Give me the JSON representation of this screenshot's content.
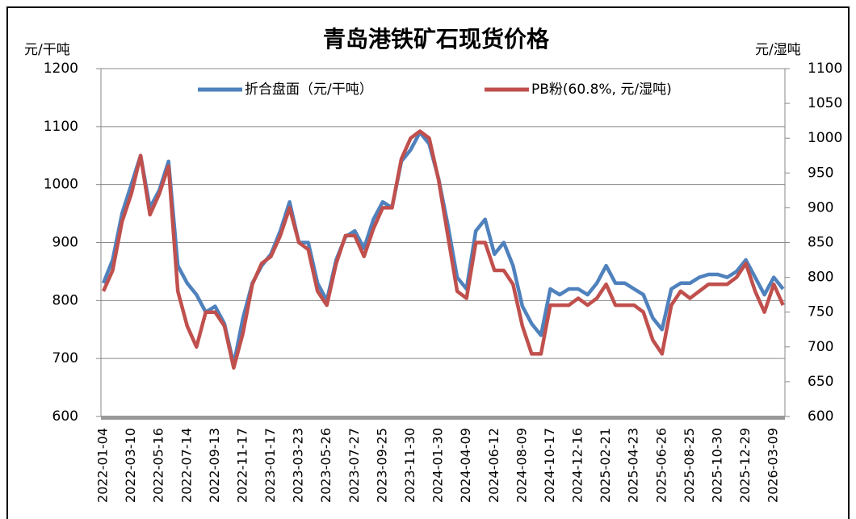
{
  "chart_data": {
    "type": "line",
    "title": "青岛港铁矿石现货价格",
    "y_label": "元/干吨",
    "y2_label": "元/湿吨",
    "categories": [
      "2022-01-04",
      null,
      null,
      "2022-03-10",
      null,
      null,
      "2022-05-16",
      null,
      null,
      "2022-07-14",
      null,
      null,
      "2022-09-13",
      null,
      null,
      "2022-11-17",
      null,
      null,
      "2023-01-17",
      null,
      null,
      "2023-03-23",
      null,
      null,
      "2023-05-26",
      null,
      null,
      "2023-07-27",
      null,
      null,
      "2023-09-25",
      null,
      null,
      "2023-11-30",
      null,
      null,
      "2024-01-30",
      null,
      null,
      "2024-04-09",
      null,
      null,
      "2024-06-12",
      null,
      null,
      "2024-08-09",
      null,
      null,
      "2024-10-17",
      null,
      null,
      "2024-12-16",
      null,
      null,
      "2025-02-21",
      null,
      null,
      "2025-04-23",
      null,
      null,
      "2025-06-26",
      null,
      null,
      "2025-08-25",
      null,
      null,
      "2025-10-30",
      null,
      null,
      "2025-12-29",
      null,
      null,
      "2026-03-09",
      null
    ],
    "series": [
      {
        "name": "折合盘面（元/干吨）",
        "color": "#4f81bd",
        "values": [
          830,
          870,
          950,
          1000,
          1050,
          960,
          990,
          1040,
          860,
          830,
          810,
          780,
          790,
          760,
          690,
          770,
          830,
          860,
          880,
          920,
          970,
          900,
          900,
          830,
          800,
          870,
          910,
          920,
          890,
          940,
          970,
          960,
          1040,
          1060,
          1090,
          1070,
          1010,
          930,
          840,
          820,
          920,
          940,
          880,
          900,
          860,
          790,
          760,
          740,
          820,
          810,
          820,
          820,
          810,
          830,
          860,
          830,
          830,
          820,
          810,
          770,
          750,
          820,
          830,
          830,
          840,
          845,
          845,
          840,
          850,
          870,
          840,
          810,
          840,
          820
        ]
      },
      {
        "name": "PB粉(60.8%, 元/湿吨)",
        "color": "#c0504d",
        "axis": "y2",
        "values": [
          780,
          810,
          880,
          920,
          975,
          890,
          920,
          960,
          780,
          730,
          700,
          750,
          750,
          730,
          670,
          720,
          790,
          820,
          830,
          860,
          900,
          850,
          840,
          780,
          760,
          820,
          860,
          860,
          830,
          870,
          900,
          900,
          970,
          1000,
          1010,
          1000,
          940,
          860,
          780,
          770,
          850,
          850,
          810,
          810,
          790,
          730,
          690,
          690,
          760,
          760,
          760,
          770,
          760,
          770,
          790,
          760,
          760,
          760,
          750,
          710,
          690,
          760,
          780,
          770,
          780,
          790,
          790,
          790,
          800,
          820,
          780,
          750,
          790,
          760
        ]
      }
    ],
    "ylim": [
      600,
      1200
    ],
    "yticks": [
      600,
      700,
      800,
      900,
      1000,
      1100,
      1200
    ],
    "y2lim": [
      600,
      1100
    ],
    "y2ticks": [
      600,
      650,
      700,
      750,
      800,
      850,
      900,
      950,
      1000,
      1050,
      1100
    ],
    "grid": true
  }
}
